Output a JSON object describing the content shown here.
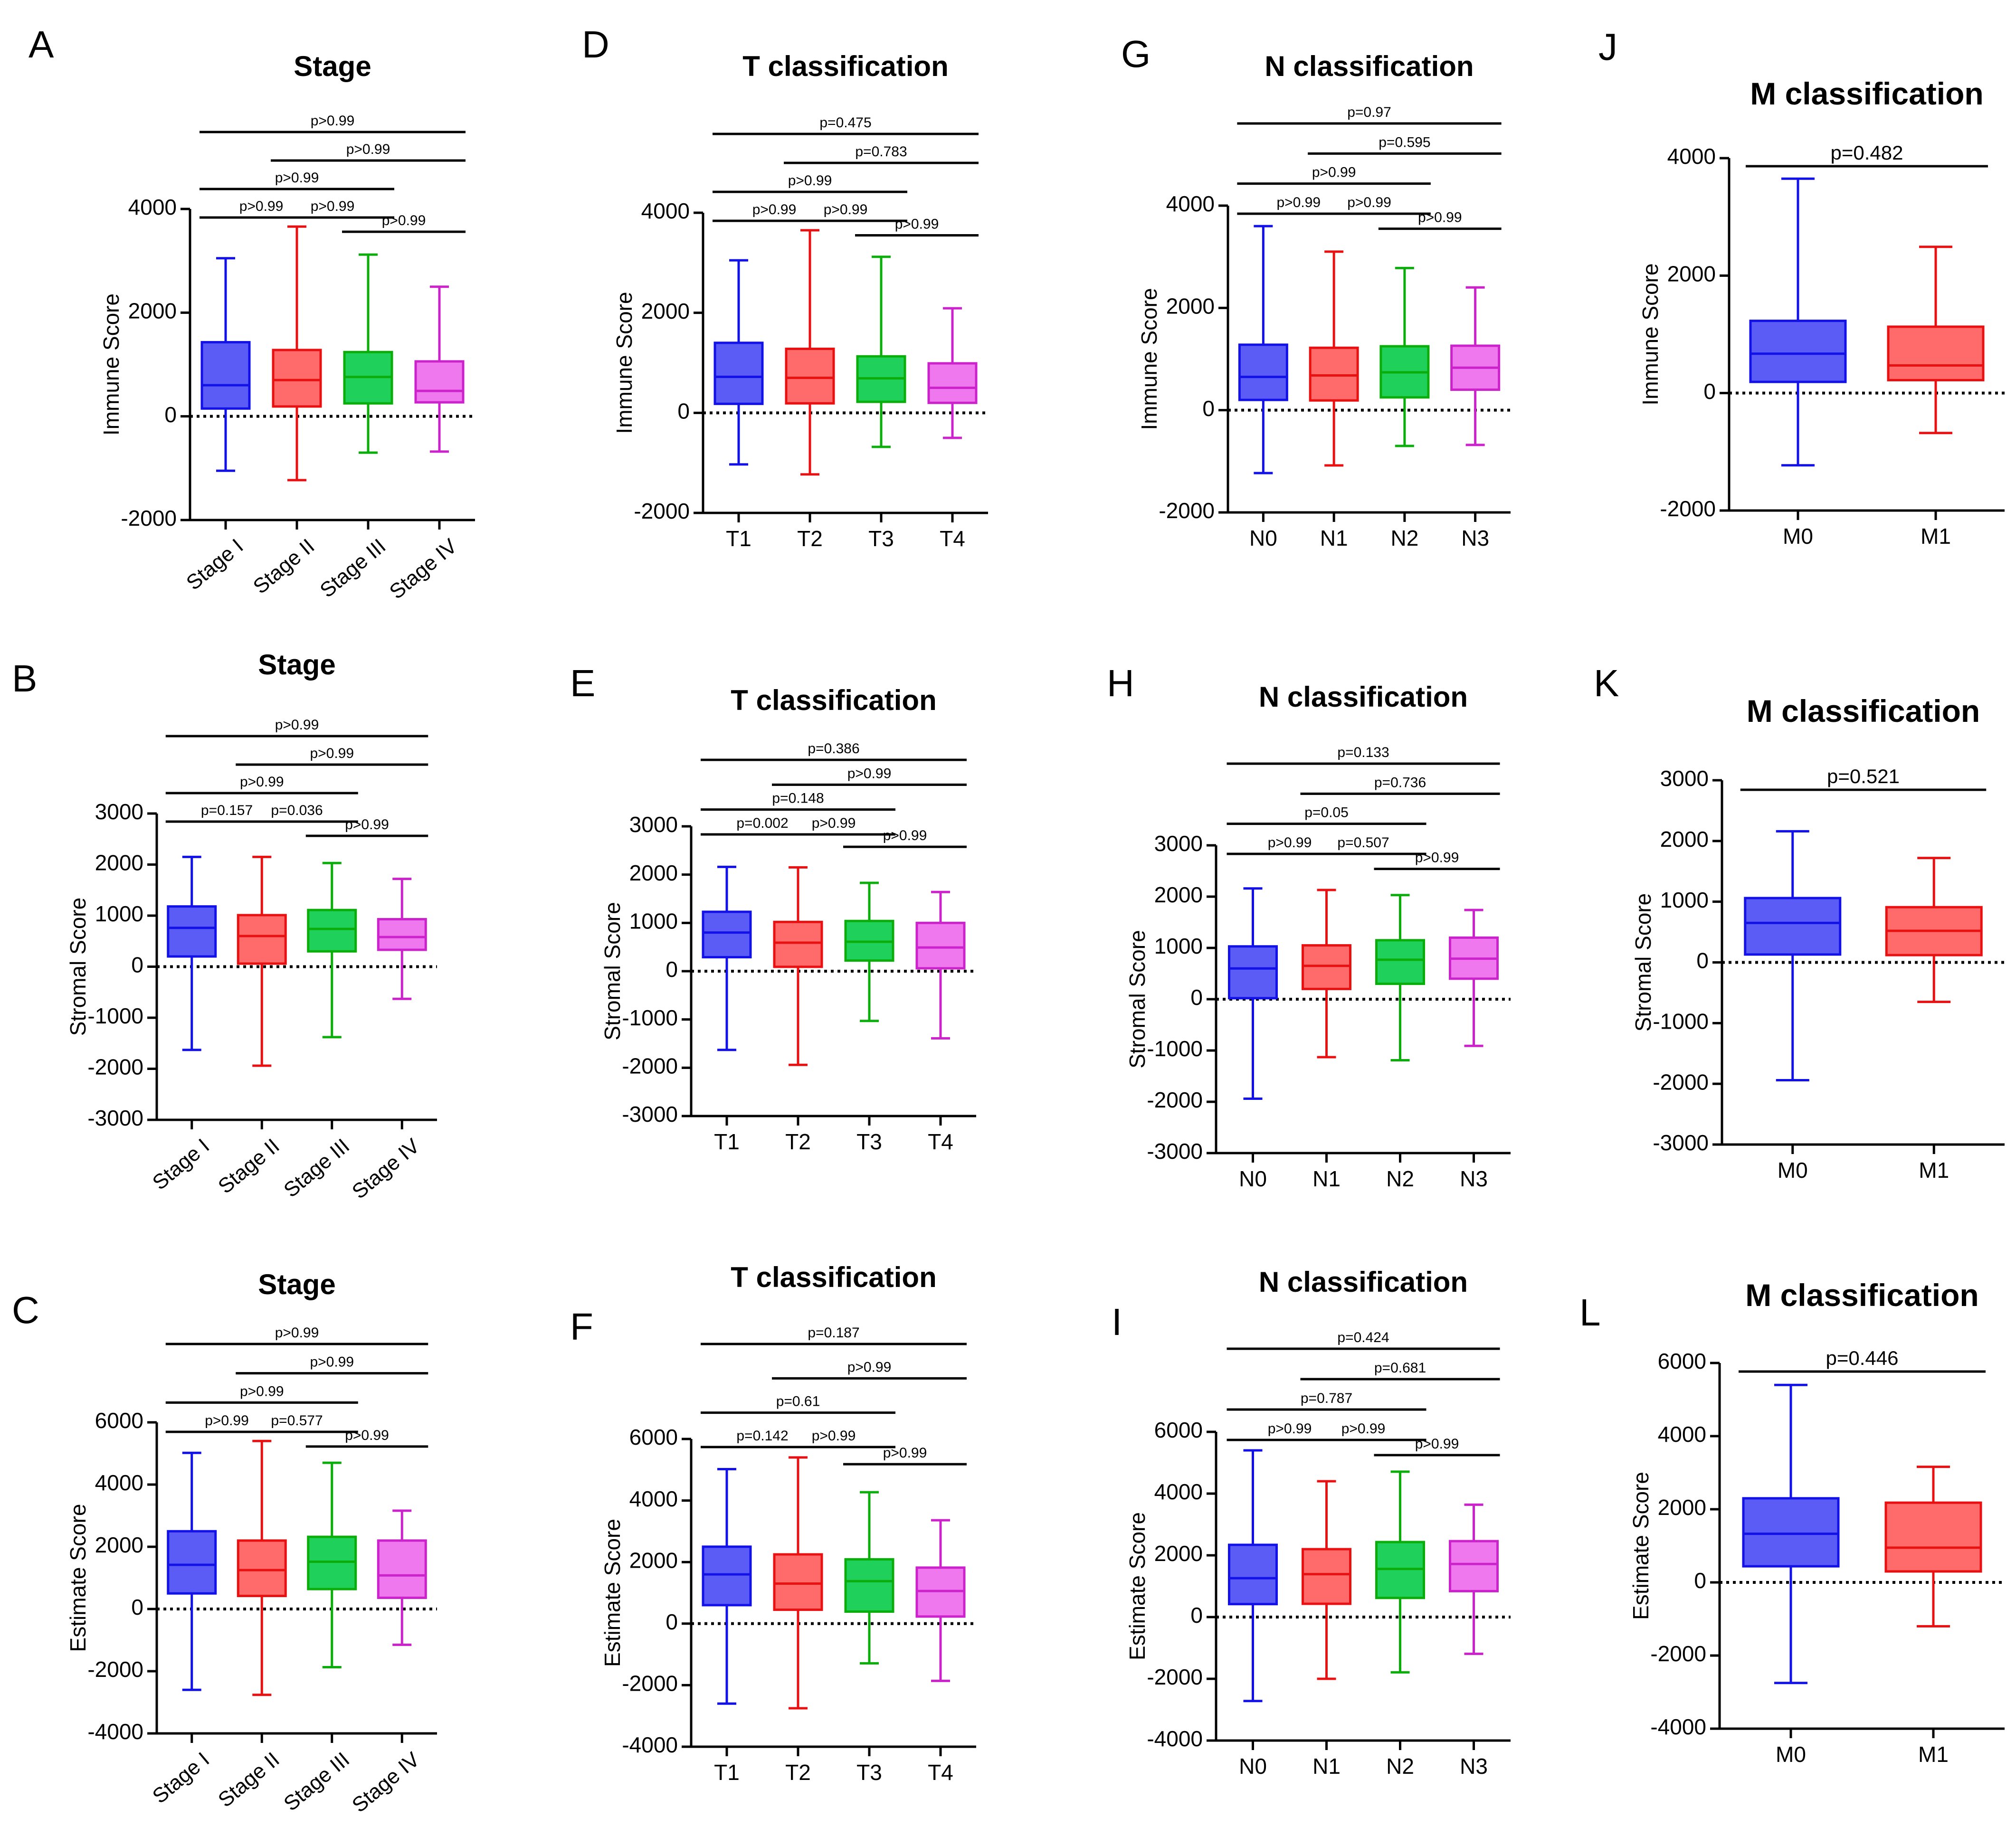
{
  "figure": {
    "style": {
      "colors": [
        "#5b5bf5",
        "#ff6b6b",
        "#1fd15a",
        "#ef78ef"
      ],
      "strokes": [
        "#1212e8",
        "#e81010",
        "#0aad0a",
        "#cc22cc"
      ],
      "axis_color": "#000000",
      "reference_line": "dotted at 0"
    }
  },
  "chart_data": [
    {
      "panel": "A",
      "type": "box",
      "title": "Stage",
      "ylabel": "Immune Score",
      "categories": [
        "Stage I",
        "Stage II",
        "Stage III",
        "Stage IV"
      ],
      "rotated_ticks": true,
      "ylim": [
        -2000,
        4000
      ],
      "yticks": [
        4000,
        2000,
        0,
        -2000
      ],
      "yticklabels": [
        "4000",
        "2000",
        "0",
        "-2000"
      ],
      "boxes": [
        {
          "min": -1050,
          "q1": 150,
          "median": 600,
          "q3": 1430,
          "max": 3050
        },
        {
          "min": -1230,
          "q1": 190,
          "median": 700,
          "q3": 1280,
          "max": 3660
        },
        {
          "min": -700,
          "q1": 250,
          "median": 760,
          "q3": 1240,
          "max": 3120
        },
        {
          "min": -680,
          "q1": 270,
          "median": 490,
          "q3": 1060,
          "max": 2500
        }
      ],
      "brackets": [
        {
          "label": "p>0.99",
          "from": 0,
          "to": 3
        },
        {
          "label": "p>0.99",
          "from": 1,
          "to": 3
        },
        {
          "label": "p>0.99",
          "from": 0,
          "to": 2
        },
        {
          "label": "p>0.99",
          "from": 0,
          "to": 1
        },
        {
          "label": "p>0.99",
          "from": 1,
          "to": 2
        },
        {
          "label": "p>0.99",
          "from": 2,
          "to": 3
        }
      ]
    },
    {
      "panel": "B",
      "type": "box",
      "title": "Stage",
      "ylabel": "Stromal Score",
      "categories": [
        "Stage I",
        "Stage II",
        "Stage III",
        "Stage IV"
      ],
      "rotated_ticks": true,
      "ylim": [
        -3000,
        3000
      ],
      "yticks": [
        3000,
        2000,
        1000,
        0,
        -1000,
        -2000,
        -3000
      ],
      "yticklabels": [
        "3000",
        "2000",
        "1000",
        "0",
        "-1000",
        "-2000",
        "-3000"
      ],
      "boxes": [
        {
          "min": -1630,
          "q1": 200,
          "median": 760,
          "q3": 1180,
          "max": 2150
        },
        {
          "min": -1940,
          "q1": 60,
          "median": 600,
          "q3": 1010,
          "max": 2150
        },
        {
          "min": -1380,
          "q1": 300,
          "median": 740,
          "q3": 1110,
          "max": 2030
        },
        {
          "min": -630,
          "q1": 330,
          "median": 580,
          "q3": 930,
          "max": 1720
        }
      ],
      "brackets": [
        {
          "label": "p>0.99",
          "from": 0,
          "to": 3
        },
        {
          "label": "p>0.99",
          "from": 1,
          "to": 3
        },
        {
          "label": "p>0.99",
          "from": 0,
          "to": 2
        },
        {
          "label": "p=0.157",
          "from": 0,
          "to": 1
        },
        {
          "label": "p=0.036",
          "from": 1,
          "to": 2
        },
        {
          "label": "p>0.99",
          "from": 2,
          "to": 3
        }
      ]
    },
    {
      "panel": "C",
      "type": "box",
      "title": "Stage",
      "ylabel": "Estimate Score",
      "categories": [
        "Stage I",
        "Stage II",
        "Stage III",
        "Stage IV"
      ],
      "rotated_ticks": true,
      "ylim": [
        -4000,
        6000
      ],
      "yticks": [
        6000,
        4000,
        2000,
        0,
        -2000,
        -4000
      ],
      "yticklabels": [
        "6000",
        "4000",
        "2000",
        "0",
        "-2000",
        "-4000"
      ],
      "boxes": [
        {
          "min": -2600,
          "q1": 500,
          "median": 1420,
          "q3": 2500,
          "max": 5020
        },
        {
          "min": -2760,
          "q1": 420,
          "median": 1250,
          "q3": 2200,
          "max": 5400
        },
        {
          "min": -1870,
          "q1": 640,
          "median": 1520,
          "q3": 2320,
          "max": 4700
        },
        {
          "min": -1150,
          "q1": 360,
          "median": 1080,
          "q3": 2200,
          "max": 3160
        }
      ],
      "brackets": [
        {
          "label": "p>0.99",
          "from": 0,
          "to": 3
        },
        {
          "label": "p>0.99",
          "from": 1,
          "to": 3
        },
        {
          "label": "p>0.99",
          "from": 0,
          "to": 2
        },
        {
          "label": "p>0.99",
          "from": 0,
          "to": 1
        },
        {
          "label": "p=0.577",
          "from": 1,
          "to": 2
        },
        {
          "label": "p>0.99",
          "from": 2,
          "to": 3
        }
      ]
    },
    {
      "panel": "D",
      "type": "box",
      "title": "T classification",
      "ylabel": "Immune Score",
      "categories": [
        "T1",
        "T2",
        "T3",
        "T4"
      ],
      "rotated_ticks": false,
      "ylim": [
        -2000,
        4000
      ],
      "yticks": [
        4000,
        2000,
        0,
        -2000
      ],
      "yticklabels": [
        "4000",
        "2000",
        "0",
        "-2000"
      ],
      "boxes": [
        {
          "min": -1030,
          "q1": 180,
          "median": 720,
          "q3": 1400,
          "max": 3050
        },
        {
          "min": -1230,
          "q1": 190,
          "median": 700,
          "q3": 1280,
          "max": 3650
        },
        {
          "min": -680,
          "q1": 220,
          "median": 690,
          "q3": 1130,
          "max": 3120
        },
        {
          "min": -500,
          "q1": 200,
          "median": 500,
          "q3": 990,
          "max": 2090
        }
      ],
      "brackets": [
        {
          "label": "p=0.475",
          "from": 0,
          "to": 3
        },
        {
          "label": "p=0.783",
          "from": 1,
          "to": 3
        },
        {
          "label": "p>0.99",
          "from": 0,
          "to": 2
        },
        {
          "label": "p>0.99",
          "from": 0,
          "to": 1
        },
        {
          "label": "p>0.99",
          "from": 1,
          "to": 2
        },
        {
          "label": "p>0.99",
          "from": 2,
          "to": 3
        }
      ]
    },
    {
      "panel": "E",
      "type": "box",
      "title": "T classification",
      "ylabel": "Stromal Score",
      "categories": [
        "T1",
        "T2",
        "T3",
        "T4"
      ],
      "rotated_ticks": false,
      "ylim": [
        -3000,
        3000
      ],
      "yticks": [
        3000,
        2000,
        1000,
        0,
        -1000,
        -2000,
        -3000
      ],
      "yticklabels": [
        "3000",
        "2000",
        "1000",
        "0",
        "-1000",
        "-2000",
        "-3000"
      ],
      "boxes": [
        {
          "min": -1630,
          "q1": 290,
          "median": 800,
          "q3": 1230,
          "max": 2160
        },
        {
          "min": -1940,
          "q1": 90,
          "median": 590,
          "q3": 1020,
          "max": 2150
        },
        {
          "min": -1030,
          "q1": 220,
          "median": 610,
          "q3": 1040,
          "max": 1830
        },
        {
          "min": -1390,
          "q1": 60,
          "median": 490,
          "q3": 1000,
          "max": 1640
        }
      ],
      "brackets": [
        {
          "label": "p=0.386",
          "from": 0,
          "to": 3
        },
        {
          "label": "p>0.99",
          "from": 1,
          "to": 3
        },
        {
          "label": "p=0.148",
          "from": 0,
          "to": 2
        },
        {
          "label": "p=0.002",
          "from": 0,
          "to": 1
        },
        {
          "label": "p>0.99",
          "from": 1,
          "to": 2
        },
        {
          "label": "p>0.99",
          "from": 2,
          "to": 3
        }
      ]
    },
    {
      "panel": "F",
      "type": "box",
      "title": "T classification",
      "ylabel": "Estimate Score",
      "categories": [
        "T1",
        "T2",
        "T3",
        "T4"
      ],
      "rotated_ticks": false,
      "ylim": [
        -4000,
        6000
      ],
      "yticks": [
        6000,
        4000,
        2000,
        0,
        -2000,
        -4000
      ],
      "yticklabels": [
        "6000",
        "4000",
        "2000",
        "0",
        "-2000",
        "-4000"
      ],
      "boxes": [
        {
          "min": -2600,
          "q1": 600,
          "median": 1600,
          "q3": 2500,
          "max": 5020
        },
        {
          "min": -2750,
          "q1": 450,
          "median": 1300,
          "q3": 2250,
          "max": 5400
        },
        {
          "min": -1290,
          "q1": 390,
          "median": 1380,
          "q3": 2090,
          "max": 4270
        },
        {
          "min": -1860,
          "q1": 230,
          "median": 1060,
          "q3": 1820,
          "max": 3360
        }
      ],
      "brackets": [
        {
          "label": "p=0.187",
          "from": 0,
          "to": 3
        },
        {
          "label": "p>0.99",
          "from": 1,
          "to": 3
        },
        {
          "label": "p=0.61",
          "from": 0,
          "to": 2
        },
        {
          "label": "p=0.142",
          "from": 0,
          "to": 1
        },
        {
          "label": "p>0.99",
          "from": 1,
          "to": 2
        },
        {
          "label": "p>0.99",
          "from": 2,
          "to": 3
        }
      ]
    },
    {
      "panel": "G",
      "type": "box",
      "title": "N classification",
      "ylabel": "Immune Score",
      "categories": [
        "N0",
        "N1",
        "N2",
        "N3"
      ],
      "rotated_ticks": false,
      "ylim": [
        -2000,
        4000
      ],
      "yticks": [
        4000,
        2000,
        0,
        -2000
      ],
      "yticklabels": [
        "4000",
        "2000",
        "0",
        "-2000"
      ],
      "boxes": [
        {
          "min": -1230,
          "q1": 200,
          "median": 650,
          "q3": 1280,
          "max": 3600
        },
        {
          "min": -1080,
          "q1": 190,
          "median": 680,
          "q3": 1220,
          "max": 3100
        },
        {
          "min": -700,
          "q1": 250,
          "median": 740,
          "q3": 1250,
          "max": 2780
        },
        {
          "min": -680,
          "q1": 400,
          "median": 830,
          "q3": 1260,
          "max": 2400
        }
      ],
      "brackets": [
        {
          "label": "p=0.97",
          "from": 0,
          "to": 3
        },
        {
          "label": "p=0.595",
          "from": 1,
          "to": 3
        },
        {
          "label": "p>0.99",
          "from": 0,
          "to": 2
        },
        {
          "label": "p>0.99",
          "from": 0,
          "to": 1
        },
        {
          "label": "p>0.99",
          "from": 1,
          "to": 2
        },
        {
          "label": "p>0.99",
          "from": 2,
          "to": 3
        }
      ]
    },
    {
      "panel": "H",
      "type": "box",
      "title": "N classification",
      "ylabel": "Stromal Score",
      "categories": [
        "N0",
        "N1",
        "N2",
        "N3"
      ],
      "rotated_ticks": false,
      "ylim": [
        -3000,
        3000
      ],
      "yticks": [
        3000,
        2000,
        1000,
        0,
        -1000,
        -2000,
        -3000
      ],
      "yticklabels": [
        "3000",
        "2000",
        "1000",
        "0",
        "-1000",
        "-2000",
        "-3000"
      ],
      "boxes": [
        {
          "min": -1940,
          "q1": 20,
          "median": 600,
          "q3": 1030,
          "max": 2160
        },
        {
          "min": -1130,
          "q1": 200,
          "median": 650,
          "q3": 1050,
          "max": 2130
        },
        {
          "min": -1190,
          "q1": 300,
          "median": 770,
          "q3": 1150,
          "max": 2030
        },
        {
          "min": -910,
          "q1": 400,
          "median": 790,
          "q3": 1200,
          "max": 1740
        }
      ],
      "brackets": [
        {
          "label": "p=0.133",
          "from": 0,
          "to": 3
        },
        {
          "label": "p=0.736",
          "from": 1,
          "to": 3
        },
        {
          "label": "p=0.05",
          "from": 0,
          "to": 2
        },
        {
          "label": "p>0.99",
          "from": 0,
          "to": 1
        },
        {
          "label": "p=0.507",
          "from": 1,
          "to": 2
        },
        {
          "label": "p>0.99",
          "from": 2,
          "to": 3
        }
      ]
    },
    {
      "panel": "I",
      "type": "box",
      "title": "N classification",
      "ylabel": "Estimate Score",
      "categories": [
        "N0",
        "N1",
        "N2",
        "N3"
      ],
      "rotated_ticks": false,
      "ylim": [
        -4000,
        6000
      ],
      "yticks": [
        6000,
        4000,
        2000,
        0,
        -2000,
        -4000
      ],
      "yticklabels": [
        "6000",
        "4000",
        "2000",
        "0",
        "-2000",
        "-4000"
      ],
      "boxes": [
        {
          "min": -2720,
          "q1": 420,
          "median": 1260,
          "q3": 2340,
          "max": 5400
        },
        {
          "min": -2000,
          "q1": 430,
          "median": 1390,
          "q3": 2200,
          "max": 4400
        },
        {
          "min": -1790,
          "q1": 620,
          "median": 1560,
          "q3": 2430,
          "max": 4710
        },
        {
          "min": -1190,
          "q1": 840,
          "median": 1720,
          "q3": 2460,
          "max": 3640
        }
      ],
      "brackets": [
        {
          "label": "p=0.424",
          "from": 0,
          "to": 3
        },
        {
          "label": "p=0.681",
          "from": 1,
          "to": 3
        },
        {
          "label": "p=0.787",
          "from": 0,
          "to": 2
        },
        {
          "label": "p>0.99",
          "from": 0,
          "to": 1
        },
        {
          "label": "p>0.99",
          "from": 1,
          "to": 2
        },
        {
          "label": "p>0.99",
          "from": 2,
          "to": 3
        }
      ]
    },
    {
      "panel": "J",
      "type": "box",
      "title": "M classification",
      "ylabel": "Immune Score",
      "categories": [
        "M0",
        "M1"
      ],
      "rotated_ticks": false,
      "ylim": [
        -2000,
        4000
      ],
      "yticks": [
        4000,
        2000,
        0,
        -2000
      ],
      "yticklabels": [
        "4000",
        "2000",
        "0",
        "-2000"
      ],
      "boxes": [
        {
          "min": -1230,
          "q1": 190,
          "median": 670,
          "q3": 1230,
          "max": 3650
        },
        {
          "min": -680,
          "q1": 220,
          "median": 470,
          "q3": 1130,
          "max": 2490
        }
      ],
      "brackets": [
        {
          "label": "p=0.482",
          "from": 0,
          "to": 1
        }
      ]
    },
    {
      "panel": "K",
      "type": "box",
      "title": "M classification",
      "ylabel": "Stromal Score",
      "categories": [
        "M0",
        "M1"
      ],
      "rotated_ticks": false,
      "ylim": [
        -3000,
        3000
      ],
      "yticks": [
        3000,
        2000,
        1000,
        0,
        -1000,
        -2000,
        -3000
      ],
      "yticklabels": [
        "3000",
        "2000",
        "1000",
        "0",
        "-1000",
        "-2000",
        "-3000"
      ],
      "boxes": [
        {
          "min": -1940,
          "q1": 130,
          "median": 650,
          "q3": 1060,
          "max": 2160
        },
        {
          "min": -650,
          "q1": 120,
          "median": 520,
          "q3": 910,
          "max": 1720
        }
      ],
      "brackets": [
        {
          "label": "p=0.521",
          "from": 0,
          "to": 1
        }
      ]
    },
    {
      "panel": "L",
      "type": "box",
      "title": "M classification",
      "ylabel": "Estimate Score",
      "categories": [
        "M0",
        "M1"
      ],
      "rotated_ticks": false,
      "ylim": [
        -4000,
        6000
      ],
      "yticks": [
        6000,
        4000,
        2000,
        0,
        -2000,
        -4000
      ],
      "yticklabels": [
        "6000",
        "4000",
        "2000",
        "0",
        "-2000",
        "-4000"
      ],
      "boxes": [
        {
          "min": -2750,
          "q1": 440,
          "median": 1330,
          "q3": 2300,
          "max": 5400
        },
        {
          "min": -1200,
          "q1": 300,
          "median": 950,
          "q3": 2180,
          "max": 3160
        }
      ],
      "brackets": [
        {
          "label": "p=0.446",
          "from": 0,
          "to": 1
        }
      ]
    }
  ]
}
